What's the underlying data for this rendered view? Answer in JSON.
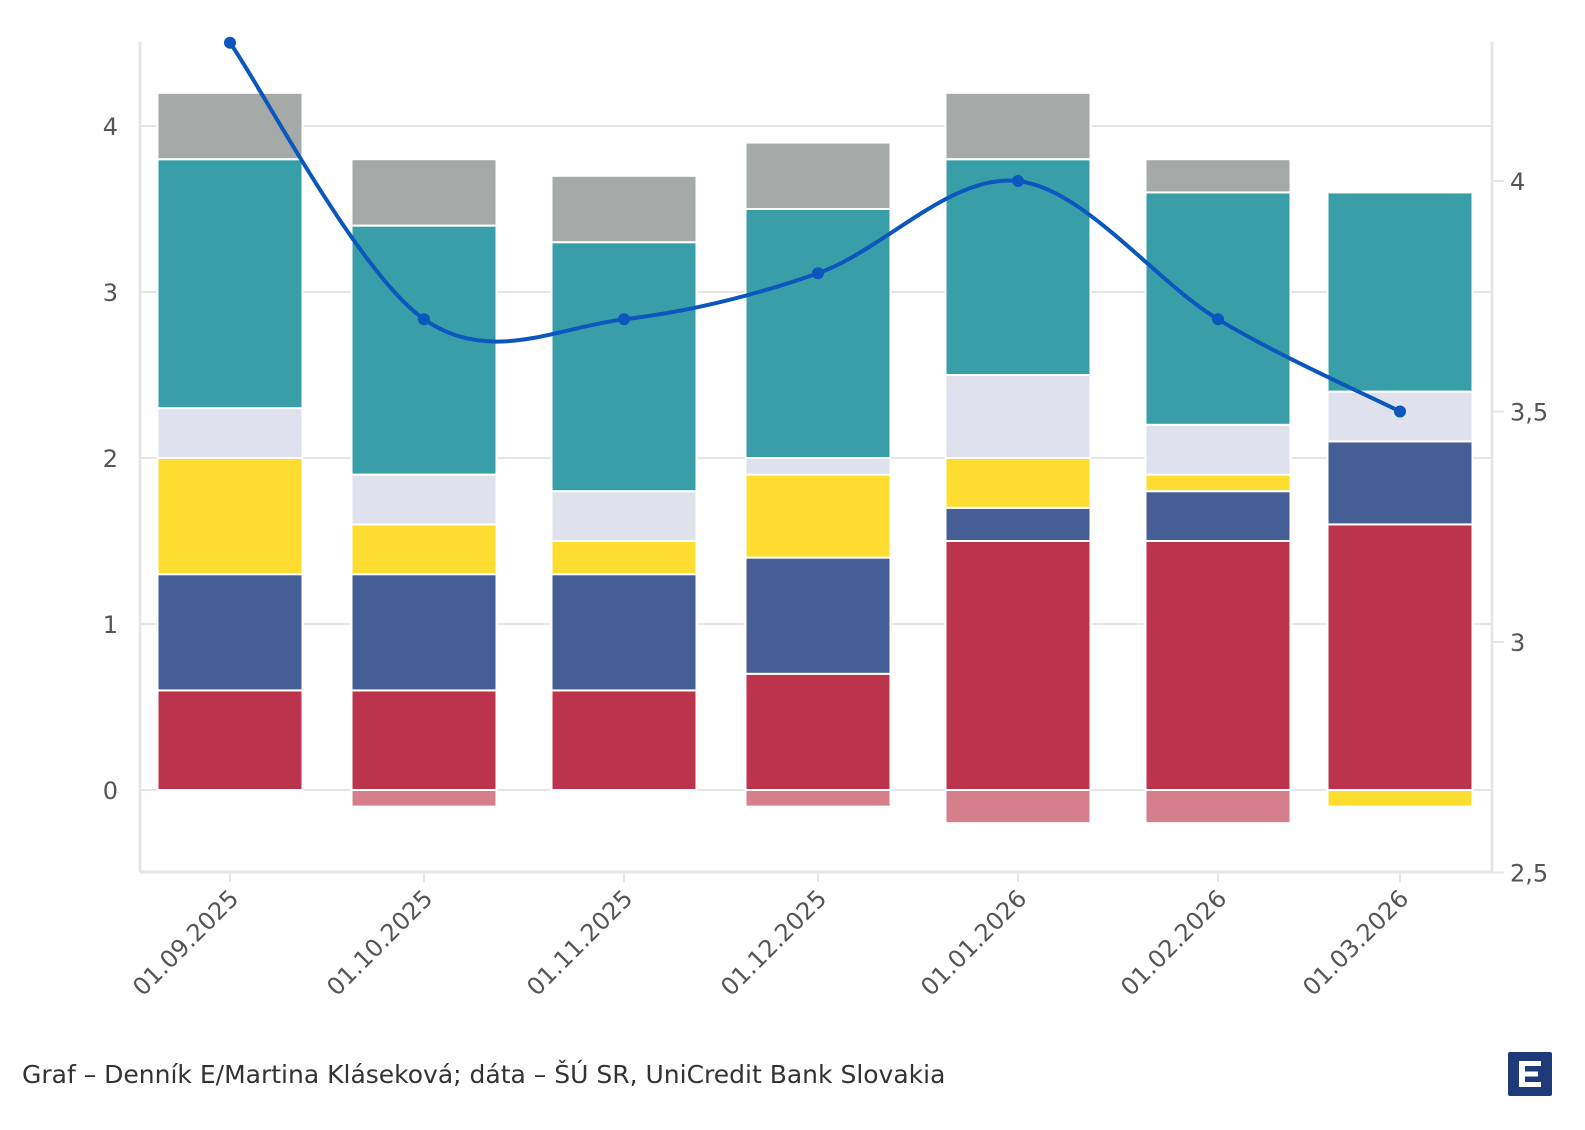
{
  "credit": "Graf – Denník E/Martina Kláseková; dáta – ŠÚ SR, UniCredit Bank Slovakia",
  "logo_name": "denniky-e-logo",
  "colors": {
    "red": "#bc344b",
    "red_light": "#d47f8b",
    "navy": "#465e96",
    "yellow": "#fedc30",
    "lightgray": "#dfe2ec",
    "teal": "#389fa8",
    "gray": "#a5a9a7",
    "line": "#0c57be",
    "grid": "#e6e6e6"
  },
  "chart_data": {
    "type": "bar",
    "stacked": true,
    "categories": [
      "01.09.2025",
      "01.10.2025",
      "01.11.2025",
      "01.12.2025",
      "01.01.2026",
      "01.02.2026",
      "01.03.2026"
    ],
    "left_axis": {
      "ylim": [
        -0.5,
        4.5
      ],
      "ticks": [
        "0",
        "1",
        "2",
        "3",
        "4"
      ],
      "tick_values": [
        0,
        1,
        2,
        3,
        4
      ]
    },
    "right_axis": {
      "ylim": [
        2.5,
        4.3
      ],
      "ticks": [
        "2,5",
        "3",
        "3,5",
        "4"
      ],
      "tick_values": [
        2.5,
        3,
        3.5,
        4
      ]
    },
    "series": [
      {
        "name": "series-1",
        "color": "#bc344b",
        "values": [
          0.6,
          0.6,
          0.6,
          0.7,
          1.5,
          1.5,
          1.6
        ]
      },
      {
        "name": "series-2",
        "color": "#465e96",
        "values": [
          0.7,
          0.7,
          0.7,
          0.7,
          0.2,
          0.3,
          0.5
        ]
      },
      {
        "name": "series-3",
        "color": "#fedc30",
        "values": [
          0.7,
          0.3,
          0.2,
          0.5,
          0.3,
          0.1,
          0.0
        ]
      },
      {
        "name": "series-4",
        "color": "#dfe2ec",
        "values": [
          0.3,
          0.3,
          0.3,
          0.1,
          0.5,
          0.3,
          0.3
        ]
      },
      {
        "name": "series-5",
        "color": "#389fa8",
        "values": [
          1.5,
          1.5,
          1.5,
          1.5,
          1.3,
          1.4,
          1.2
        ]
      },
      {
        "name": "series-6",
        "color": "#a5a9a7",
        "values": [
          0.4,
          0.4,
          0.4,
          0.4,
          0.4,
          0.2,
          0.0
        ]
      }
    ],
    "negative_series": [
      {
        "name": "neg-red",
        "color": "#d47f8b",
        "values": [
          0,
          -0.1,
          0,
          -0.1,
          -0.2,
          -0.2,
          0
        ]
      },
      {
        "name": "neg-yellow",
        "color": "#fedc30",
        "values": [
          0,
          0,
          0,
          0,
          0,
          0,
          -0.1
        ]
      }
    ],
    "line": {
      "name": "line-series",
      "axis": "right",
      "color": "#0c57be",
      "values": [
        4.3,
        3.7,
        3.7,
        3.8,
        4.0,
        3.7,
        3.5
      ]
    },
    "title": "",
    "xlabel": "",
    "ylabel": "",
    "grid": true
  }
}
